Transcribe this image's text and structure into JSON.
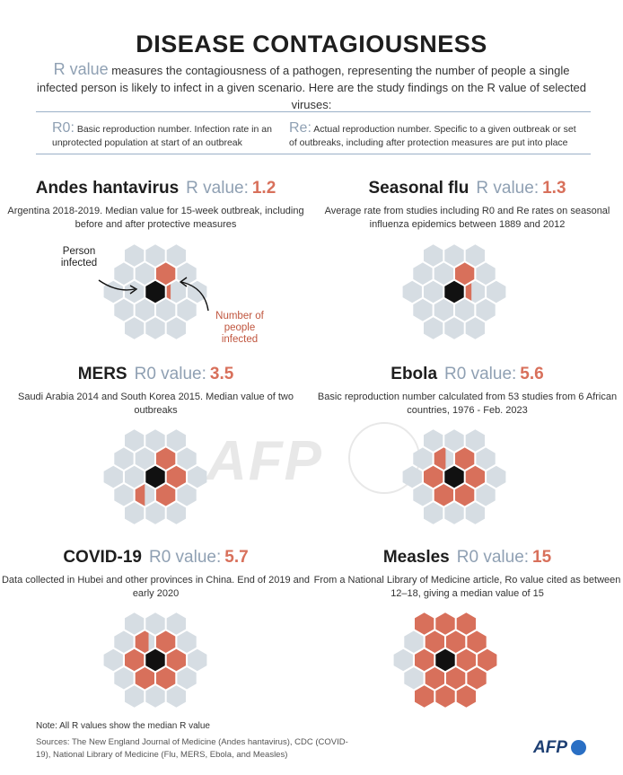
{
  "title": "DISEASE CONTAGIOUSNESS",
  "intro": {
    "rvalue_label": "R value",
    "text": " measures the contagiousness of a pathogen, representing the number of people a single infected person is likely to infect in a given scenario. Here are the study findings on the R value of selected viruses:"
  },
  "definitions": {
    "r0_symbol": "R0:",
    "r0_text": " Basic reproduction number. Infection rate in an unprotected population at start of an outbreak",
    "re_symbol": "Re:",
    "re_text": " Actual reproduction number. Specific to a given outbreak or set of outbreaks, including after protection measures are put into place"
  },
  "panels": [
    {
      "name": "Andes hantavirus",
      "r_label": "R value:",
      "r_value": "1.2",
      "infected": 1.2,
      "desc": "Argentina 2018-2019. Median value for 15-week outbreak, including before and after protective measures"
    },
    {
      "name": "Seasonal flu",
      "r_label": "R value:",
      "r_value": "1.3",
      "infected": 1.3,
      "desc": "Average rate from studies including R0 and Re rates on seasonal influenza epidemics between 1889 and 2012"
    },
    {
      "name": "MERS",
      "r_label": "R0 value:",
      "r_value": "3.5",
      "infected": 3.5,
      "desc": "Saudi Arabia 2014 and South Korea 2015. Median value of two outbreaks"
    },
    {
      "name": "Ebola",
      "r_label": "R0 value:",
      "r_value": "5.6",
      "infected": 5.6,
      "desc": "Basic reproduction number calculated from 53 studies from 6 African countries, 1976 - Feb. 2023"
    },
    {
      "name": "COVID-19",
      "r_label": "R0 value:",
      "r_value": "5.7",
      "infected": 5.7,
      "desc": "Data collected in Hubei and other provinces in China. End of 2019 and early 2020"
    },
    {
      "name": "Measles",
      "r_label": "R0 value:",
      "r_value": "15",
      "infected": 15,
      "desc": "From a National Library of Medicine article, Ro value cited as between 12–18, giving a median value of 15"
    }
  ],
  "annotations": {
    "person_infected": "Person infected",
    "number_infected": "Number of people infected"
  },
  "watermark": "AFP",
  "note": "Note: All R values show the median R value",
  "sources": "Sources: The New England Journal of Medicine (Andes hantavirus), CDC (COVID-19), National Library of Medicine (Flu, MERS, Ebola, and Measles)",
  "logo": "AFP",
  "colors": {
    "infected": "#d8705b",
    "healthy": "#d6dde3",
    "source": "#111111",
    "accent": "#8fa0b3"
  }
}
